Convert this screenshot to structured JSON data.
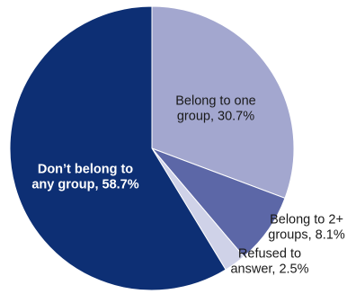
{
  "chart_data": {
    "type": "pie",
    "slices": [
      {
        "label_lines": [
          "Belong to one",
          "group, 30.7%"
        ],
        "category": "Belong to one group",
        "value": 30.7,
        "color": "#a3a7cf",
        "label_color": "#1a1a1a",
        "bold": false
      },
      {
        "label_lines": [
          "Belong to 2+",
          "groups, 8.1%"
        ],
        "category": "Belong to 2+ groups",
        "value": 8.1,
        "color": "#5c67a7",
        "label_color": "#1a1a1a",
        "bold": false
      },
      {
        "label_lines": [
          "Refused to",
          "answer, 2.5%"
        ],
        "category": "Refused to answer",
        "value": 2.5,
        "color": "#cfd2e8",
        "label_color": "#1a1a1a",
        "bold": false
      },
      {
        "label_lines": [
          "Don’t belong to",
          "any group, 58.7%"
        ],
        "category": "Don’t belong to any group",
        "value": 58.7,
        "color": "#0d2f74",
        "label_color": "#ffffff",
        "bold": true
      }
    ],
    "start_angle_deg": 0,
    "direction": "clockwise",
    "legend": "none"
  }
}
